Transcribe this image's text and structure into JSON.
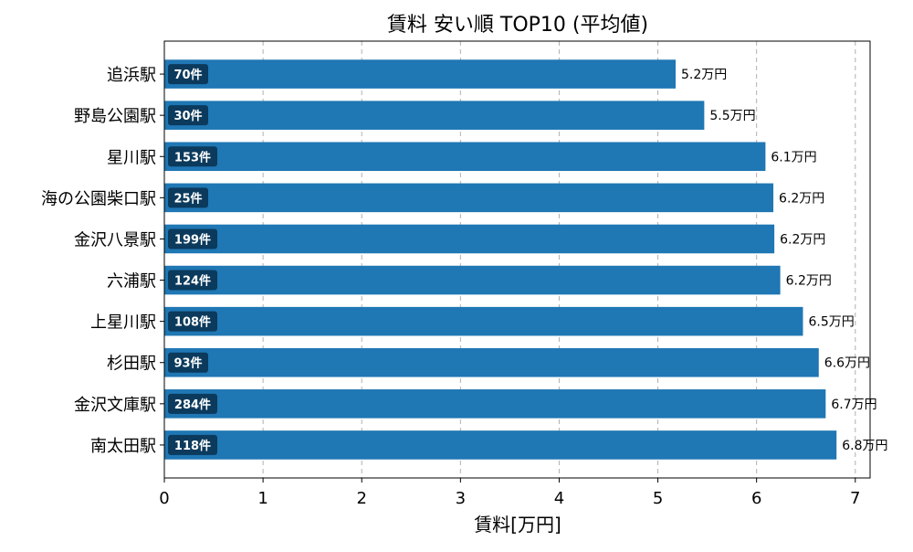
{
  "chart_data": {
    "type": "bar",
    "orientation": "horizontal",
    "title": "賃料 安い順 TOP10 (平均値)",
    "xlabel": "賃料[万円]",
    "ylabel": "",
    "xlim": [
      0,
      7.15
    ],
    "xticks": [
      0,
      1,
      2,
      3,
      4,
      5,
      6,
      7
    ],
    "grid": "x-dashed",
    "bar_color": "#1f77b4",
    "badge_color": "#0b3a5c",
    "categories": [
      "追浜駅",
      "野島公園駅",
      "星川駅",
      "海の公園柴口駅",
      "金沢八景駅",
      "六浦駅",
      "上星川駅",
      "杉田駅",
      "金沢文庫駅",
      "南太田駅"
    ],
    "values": [
      5.18,
      5.47,
      6.09,
      6.17,
      6.18,
      6.24,
      6.47,
      6.63,
      6.7,
      6.81
    ],
    "value_labels": [
      "5.2万円",
      "5.5万円",
      "6.1万円",
      "6.2万円",
      "6.2万円",
      "6.2万円",
      "6.5万円",
      "6.6万円",
      "6.7万円",
      "6.8万円"
    ],
    "counts": [
      "70件",
      "30件",
      "153件",
      "25件",
      "199件",
      "124件",
      "108件",
      "93件",
      "284件",
      "118件"
    ]
  }
}
